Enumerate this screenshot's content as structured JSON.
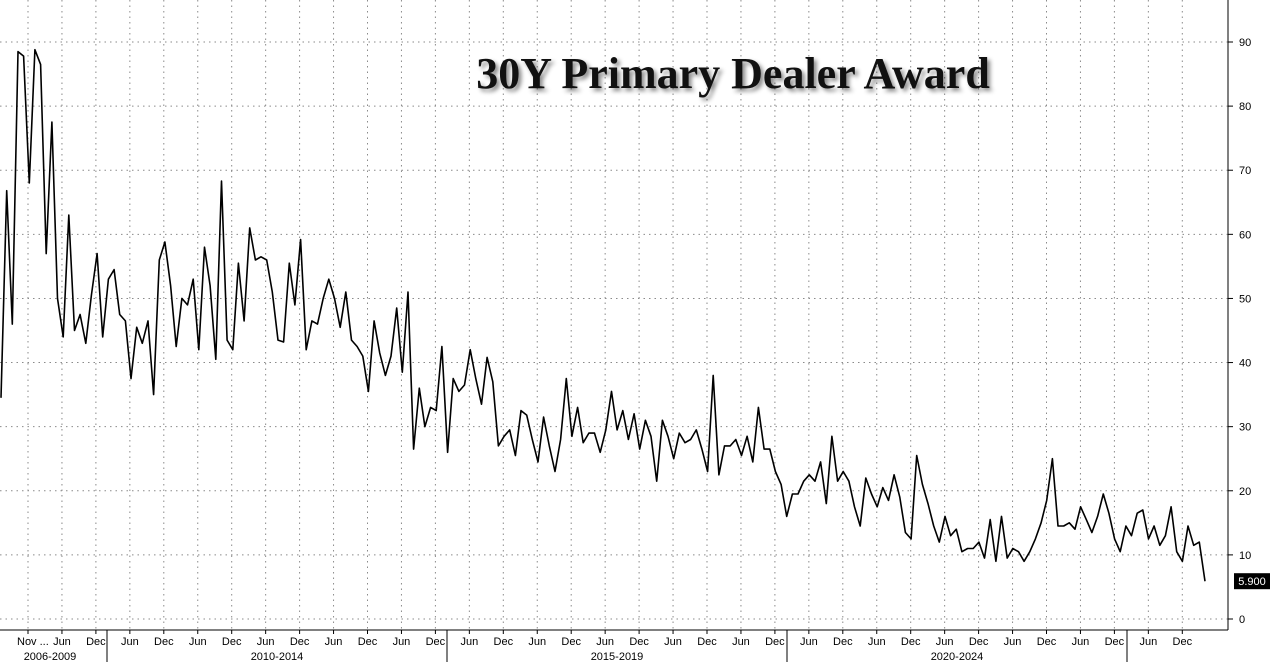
{
  "chart_data": {
    "type": "line",
    "title": "30Y Primary Dealer Award",
    "xlabel": "",
    "ylabel": "",
    "ylim": [
      0,
      95
    ],
    "y_ticks": [
      0,
      10,
      20,
      30,
      40,
      50,
      60,
      70,
      80,
      90
    ],
    "y_axis_side": "right",
    "grid": true,
    "last_value_label": "5.900",
    "x_tick_labels": [
      "Nov ...",
      "Jun",
      "Dec",
      "Jun",
      "Dec",
      "Jun",
      "Dec",
      "Jun",
      "Dec",
      "Jun",
      "Dec",
      "Jun",
      "Dec",
      "Jun",
      "Dec",
      "Jun",
      "Dec",
      "Jun",
      "Dec",
      "Jun",
      "Dec",
      "Jun",
      "Dec",
      "Jun",
      "Dec",
      "Jun",
      "Dec",
      "Jun",
      "Dec",
      "Jun",
      "Dec",
      "Jun",
      "Dec",
      "Jun",
      "Dec"
    ],
    "period_labels": [
      "2006-2009",
      "2010-2014",
      "2015-2019",
      "2020-2024"
    ],
    "series": [
      {
        "values": [
          34.5,
          66.8,
          46.0,
          88.5,
          87.8,
          68.0,
          88.8,
          86.5,
          57.0,
          77.5,
          50.0,
          44.0,
          63.0,
          45.0,
          47.5,
          43.0,
          50.5,
          57.0,
          44.0,
          53.0,
          54.5,
          47.5,
          46.5,
          37.5,
          45.5,
          43.0,
          46.5,
          35.0,
          56.0,
          58.8,
          52.0,
          42.5,
          50.0,
          49.0,
          53.0,
          42.0,
          58.0,
          52.0,
          40.5,
          68.3,
          43.5,
          42.0,
          55.5,
          46.5,
          61.0,
          56.0,
          56.5,
          56.0,
          51.0,
          43.5,
          43.2,
          55.5,
          49.0,
          59.2,
          42.0,
          46.5,
          46.0,
          50.0,
          53.0,
          50.0,
          45.5,
          51.0,
          43.5,
          42.5,
          41.0,
          35.5,
          46.5,
          41.5,
          38.0,
          41.0,
          48.5,
          38.5,
          51.0,
          26.5,
          36.0,
          30.0,
          33.0,
          32.5,
          42.5,
          26.0,
          37.5,
          35.5,
          36.5,
          42.0,
          37.5,
          33.5,
          40.8,
          37.0,
          27.0,
          28.5,
          29.5,
          25.5,
          32.5,
          31.8,
          28.0,
          24.5,
          31.5,
          27.0,
          23.0,
          28.0,
          37.5,
          28.5,
          33.0,
          27.5,
          29.0,
          29.0,
          26.0,
          29.5,
          35.5,
          29.5,
          32.5,
          28.0,
          32.0,
          26.5,
          31.0,
          28.5,
          21.5,
          31.0,
          28.5,
          25.0,
          29.0,
          27.5,
          28.0,
          29.5,
          26.5,
          23.0,
          38.0,
          22.5,
          27.0,
          27.0,
          28.0,
          25.5,
          28.5,
          24.5,
          33.0,
          26.5,
          26.5,
          23.0,
          21.0,
          16.0,
          19.5,
          19.5,
          21.5,
          22.5,
          21.5,
          24.5,
          18.0,
          28.5,
          21.5,
          23.0,
          21.5,
          17.5,
          14.5,
          22.0,
          19.5,
          17.5,
          20.5,
          18.5,
          22.5,
          19.0,
          13.5,
          12.5,
          25.5,
          21.0,
          18.0,
          14.5,
          12.0,
          16.0,
          13.0,
          14.0,
          10.5,
          11.0,
          11.0,
          12.0,
          9.5,
          15.5,
          9.0,
          16.0,
          9.5,
          11.0,
          10.5,
          9.0,
          10.5,
          12.5,
          15.0,
          18.5,
          25.0,
          14.5,
          14.5,
          15.0,
          14.0,
          17.5,
          15.5,
          13.5,
          16.0,
          19.5,
          16.5,
          12.5,
          10.5,
          14.5,
          13.0,
          16.5,
          17.0,
          12.5,
          14.5,
          11.5,
          13.0,
          17.5,
          10.5,
          9.0,
          14.5,
          11.5,
          12.0,
          5.9
        ]
      }
    ]
  }
}
